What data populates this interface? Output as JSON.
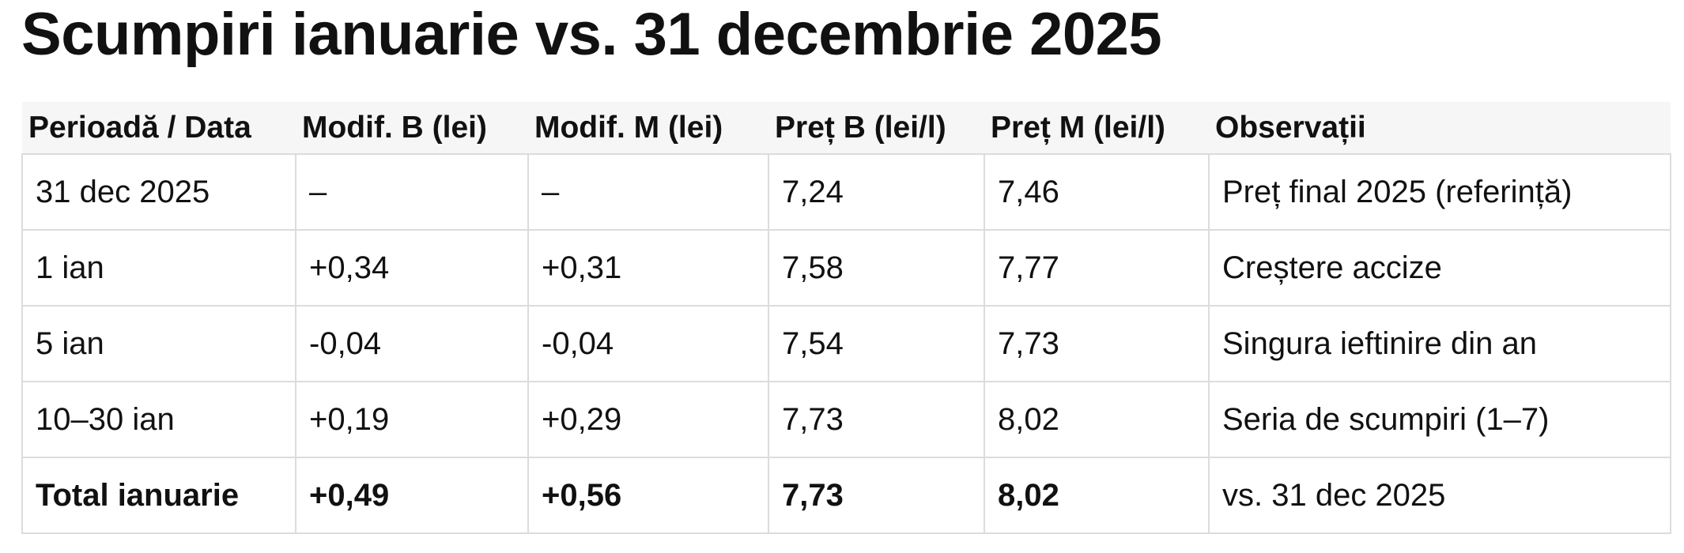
{
  "title": "Scumpiri ianuarie vs. 31 decembrie 2025",
  "table": {
    "headers": [
      "Perioadă / Data",
      "Modif. B (lei)",
      "Modif. M (lei)",
      "Preț B (lei/l)",
      "Preț M (lei/l)",
      "Observații"
    ],
    "rows": [
      [
        "31 dec 2025",
        "–",
        "–",
        "7,24",
        "7,46",
        "Preț final 2025 (referință)"
      ],
      [
        "1 ian",
        "+0,34",
        "+0,31",
        "7,58",
        "7,77",
        "Creștere accize"
      ],
      [
        "5 ian",
        "-0,04",
        "-0,04",
        "7,54",
        "7,73",
        "Singura ieftinire din an"
      ],
      [
        "10–30 ian",
        "+0,19",
        "+0,29",
        "7,73",
        "8,02",
        "Seria de scumpiri (1–7)"
      ],
      [
        "Total ianuarie",
        "+0,49",
        "+0,56",
        "7,73",
        "8,02",
        "vs. 31 dec 2025"
      ]
    ]
  }
}
